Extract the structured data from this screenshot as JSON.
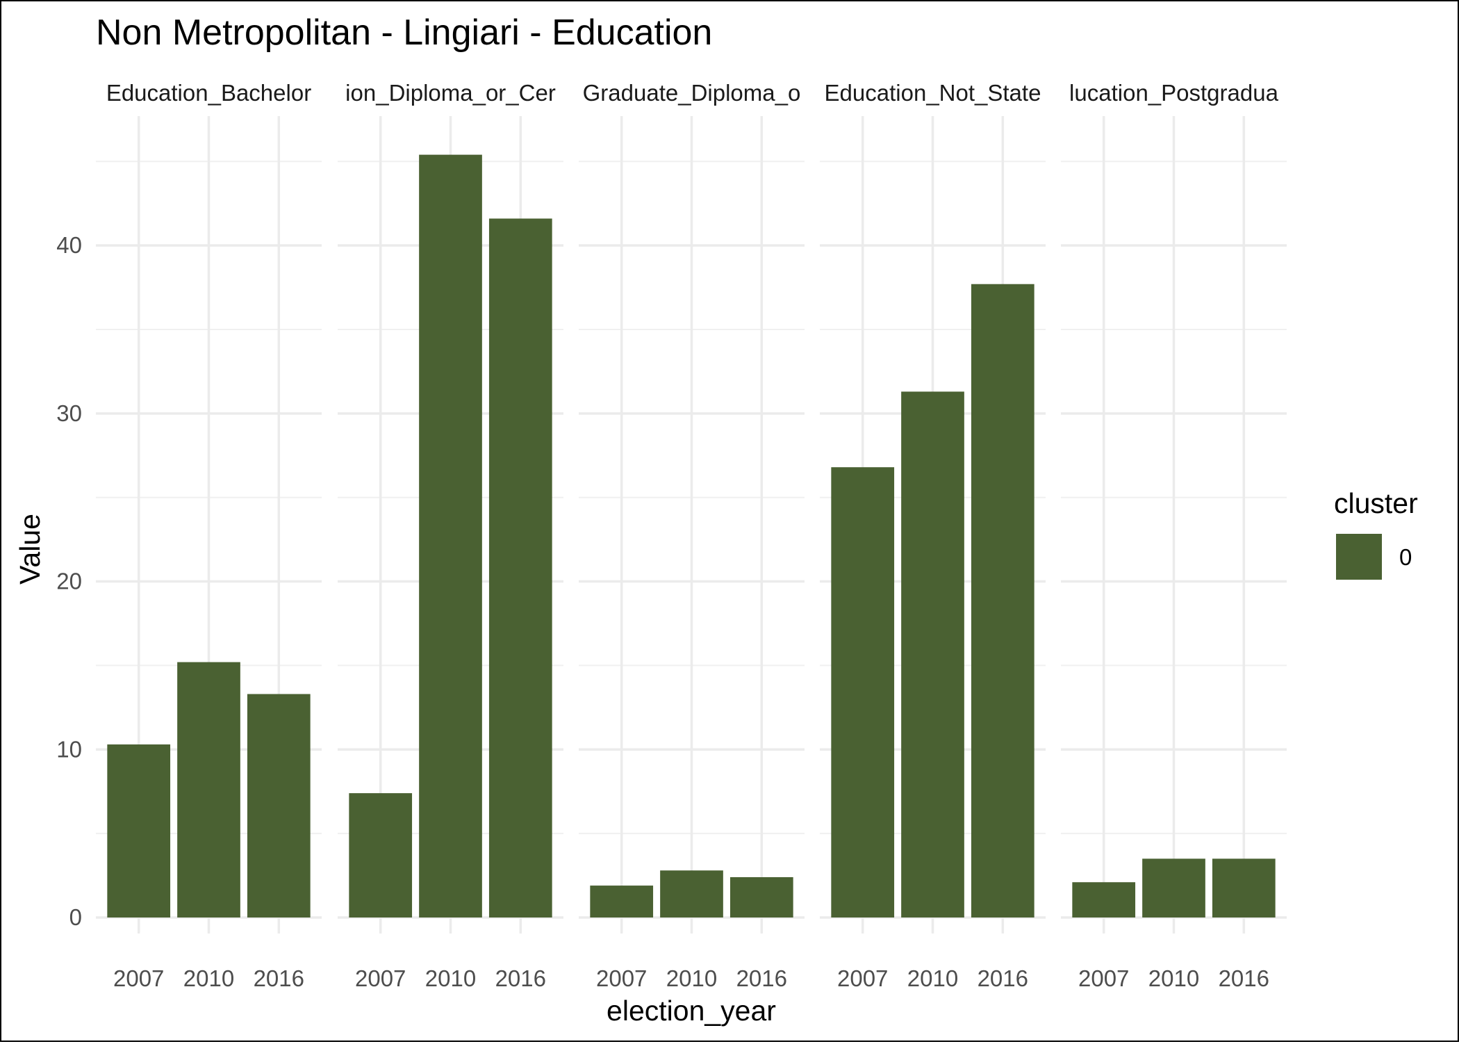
{
  "chart_data": {
    "type": "bar",
    "title": "Non Metropolitan - Lingiari - Education",
    "xlabel": "election_year",
    "ylabel": "Value",
    "ylim": [
      0,
      47.7
    ],
    "yticks": [
      0,
      10,
      20,
      30,
      40
    ],
    "categories": [
      "2007",
      "2010",
      "2016"
    ],
    "grid": true,
    "legend": {
      "title": "cluster",
      "placement": "right",
      "entries": [
        {
          "label": "0",
          "color": "#4a6132"
        }
      ]
    },
    "panels": [
      {
        "strip_label": "Education_Bachelor",
        "values": [
          10.3,
          15.2,
          13.3
        ]
      },
      {
        "strip_label": "ion_Diploma_or_Cer",
        "values": [
          7.4,
          45.4,
          41.6
        ]
      },
      {
        "strip_label": "Graduate_Diploma_o",
        "values": [
          1.9,
          2.8,
          2.4
        ]
      },
      {
        "strip_label": "Education_Not_State",
        "values": [
          26.8,
          31.3,
          37.7
        ]
      },
      {
        "strip_label": "lucation_Postgradua",
        "values": [
          2.1,
          3.5,
          3.5
        ]
      }
    ]
  }
}
